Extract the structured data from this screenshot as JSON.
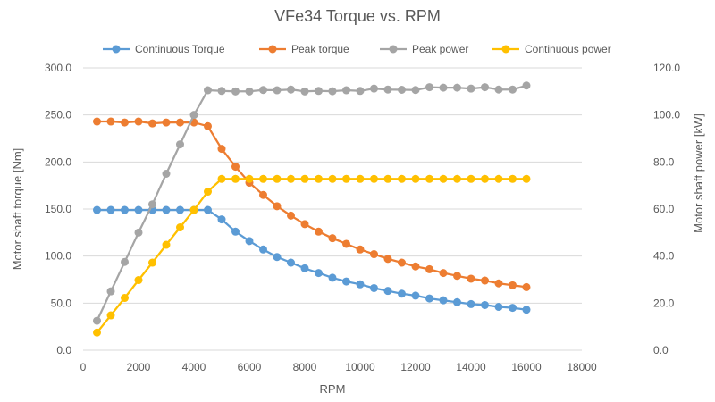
{
  "chart_data": {
    "type": "line",
    "title": "VFe34 Torque vs. RPM",
    "xlabel": "RPM",
    "ylabel": "Motor shaft torque [Nm]",
    "y2label": "Motor shaft power [kW]",
    "xlim": [
      0,
      18000
    ],
    "ylim": [
      0,
      300
    ],
    "y2lim": [
      0,
      120
    ],
    "x_ticks": [
      "0",
      "2000",
      "4000",
      "6000",
      "8000",
      "10000",
      "12000",
      "14000",
      "16000",
      "18000"
    ],
    "y_ticks": [
      "0.0",
      "50.0",
      "100.0",
      "150.0",
      "200.0",
      "250.0",
      "300.0"
    ],
    "y2_ticks": [
      "0.0",
      "20.0",
      "40.0",
      "60.0",
      "80.0",
      "100.0",
      "120.0"
    ],
    "grid": true,
    "legend_position": "top",
    "x": [
      500,
      1000,
      1500,
      2000,
      2500,
      3000,
      3500,
      4000,
      4500,
      5000,
      5500,
      6000,
      6500,
      7000,
      7500,
      8000,
      8500,
      9000,
      9500,
      10000,
      10500,
      11000,
      11500,
      12000,
      12500,
      13000,
      13500,
      14000,
      14500,
      15000,
      15500,
      16000
    ],
    "series": [
      {
        "name": "Continuous Torque",
        "axis": "left",
        "color": "#5B9BD5",
        "values": [
          149,
          149,
          149,
          149,
          149,
          149,
          149,
          149,
          149,
          139,
          126,
          116,
          107,
          99,
          93,
          87,
          82,
          77,
          73,
          70,
          66,
          63,
          60,
          58,
          55,
          53,
          51,
          49,
          48,
          46,
          45,
          43
        ]
      },
      {
        "name": "Peak torque",
        "axis": "left",
        "color": "#ED7D31",
        "values": [
          243,
          243,
          242,
          243,
          241,
          242,
          242,
          242,
          238,
          214,
          195,
          178,
          165,
          153,
          143,
          134,
          126,
          119,
          113,
          107,
          102,
          97,
          93,
          89,
          86,
          82,
          79,
          76,
          74,
          71,
          69,
          67
        ]
      },
      {
        "name": "Peak power",
        "axis": "right",
        "color": "#A5A5A5",
        "values": [
          12.5,
          25,
          37.5,
          50,
          62,
          75,
          87.5,
          100,
          110.5,
          110.2,
          110,
          110,
          110.6,
          110.5,
          110.8,
          110,
          110.2,
          110.1,
          110.5,
          110.2,
          111.2,
          110.8,
          110.7,
          110.6,
          111.8,
          111.6,
          111.6,
          111.2,
          111.8,
          110.8,
          110.8,
          112.5
        ]
      },
      {
        "name": "Continuous power",
        "axis": "right",
        "color": "#FFC000",
        "values": [
          7.5,
          14.8,
          22.2,
          29.8,
          37.2,
          44.8,
          52.2,
          59.6,
          67.4,
          72.8,
          72.8,
          72.8,
          72.8,
          72.8,
          72.8,
          72.8,
          72.8,
          72.8,
          72.8,
          72.8,
          72.8,
          72.8,
          72.8,
          72.8,
          72.8,
          72.8,
          72.8,
          72.8,
          72.8,
          72.8,
          72.8,
          72.8
        ]
      }
    ]
  }
}
